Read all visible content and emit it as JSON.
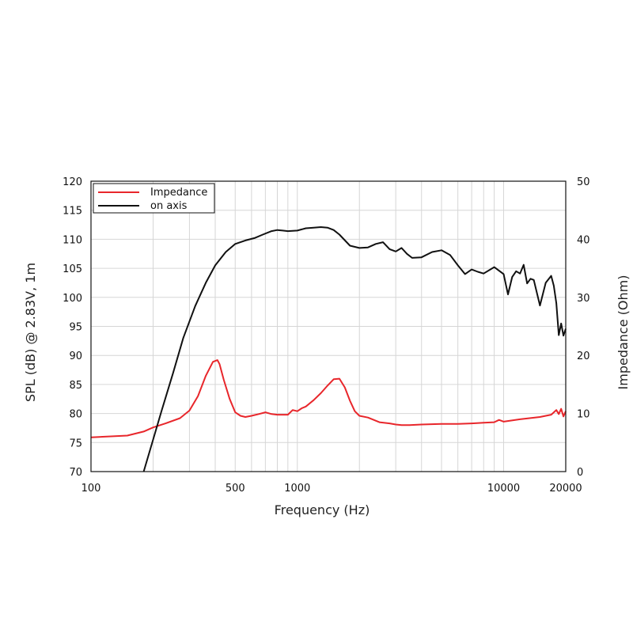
{
  "chart_data": {
    "type": "line",
    "xlabel": "Frequency (Hz)",
    "ylabel": "SPL (dB) @ 2.83V, 1m",
    "y2label": "Impedance (Ohm)",
    "xscale": "log",
    "xlim": [
      100,
      20000
    ],
    "ylim": [
      70,
      120
    ],
    "y2lim": [
      0,
      50
    ],
    "grid": true,
    "legend_position": "top-left",
    "x_ticks": [
      "100",
      "500",
      "1000",
      "10000",
      "20000"
    ],
    "y_ticks": [
      "70",
      "75",
      "80",
      "85",
      "90",
      "95",
      "100",
      "105",
      "110",
      "115",
      "120"
    ],
    "y2_ticks": [
      "0",
      "10",
      "20",
      "30",
      "40",
      "50"
    ],
    "series": [
      {
        "name": "Impedance",
        "axis": "right",
        "color": "#e8262b",
        "x": [
          100,
          150,
          180,
          200,
          230,
          270,
          300,
          330,
          360,
          390,
          410,
          420,
          440,
          470,
          500,
          530,
          560,
          600,
          650,
          700,
          750,
          800,
          900,
          950,
          1000,
          1050,
          1100,
          1200,
          1300,
          1400,
          1500,
          1600,
          1700,
          1800,
          1900,
          2000,
          2200,
          2500,
          2800,
          3000,
          3200,
          3500,
          4000,
          5000,
          6000,
          7000,
          8000,
          9000,
          9500,
          10000,
          12000,
          15000,
          17000,
          18000,
          18500,
          19000,
          19500,
          20000
        ],
        "values": [
          5.9,
          6.2,
          6.9,
          7.6,
          8.3,
          9.2,
          10.5,
          13,
          16.5,
          18.9,
          19.2,
          18.5,
          15.8,
          12.5,
          10.2,
          9.6,
          9.4,
          9.6,
          9.9,
          10.2,
          9.9,
          9.8,
          9.8,
          10.6,
          10.4,
          10.9,
          11.2,
          12.3,
          13.5,
          14.8,
          15.9,
          16.0,
          14.5,
          12.2,
          10.4,
          9.6,
          9.3,
          8.5,
          8.3,
          8.1,
          8.0,
          8.0,
          8.1,
          8.2,
          8.2,
          8.3,
          8.4,
          8.5,
          8.9,
          8.6,
          9.0,
          9.4,
          9.8,
          10.6,
          9.9,
          10.8,
          9.5,
          10.4
        ]
      },
      {
        "name": "on axis",
        "axis": "left",
        "color": "#111111",
        "x": [
          180,
          200,
          220,
          250,
          280,
          320,
          360,
          400,
          450,
          500,
          560,
          620,
          680,
          750,
          800,
          850,
          900,
          1000,
          1100,
          1200,
          1300,
          1400,
          1500,
          1600,
          1800,
          2000,
          2200,
          2400,
          2600,
          2800,
          3000,
          3200,
          3400,
          3600,
          4000,
          4500,
          5000,
          5500,
          6000,
          6500,
          7000,
          7500,
          8000,
          9000,
          10000,
          10500,
          11000,
          11500,
          12000,
          12500,
          13000,
          13500,
          14000,
          15000,
          16000,
          17000,
          17500,
          18000,
          18500,
          19000,
          19500,
          20000
        ],
        "values": [
          70,
          75.5,
          80.5,
          87,
          93,
          98.5,
          102.5,
          105.5,
          107.8,
          109.2,
          109.8,
          110.2,
          110.8,
          111.4,
          111.6,
          111.5,
          111.4,
          111.5,
          111.9,
          112,
          112.1,
          112,
          111.6,
          110.8,
          108.9,
          108.5,
          108.6,
          109.2,
          109.5,
          108.3,
          107.9,
          108.5,
          107.5,
          106.8,
          106.9,
          107.8,
          108.1,
          107.3,
          105.5,
          104,
          104.8,
          104.4,
          104.1,
          105.2,
          104,
          100.5,
          103.5,
          104.5,
          104.1,
          105.6,
          102.4,
          103.2,
          103,
          98.6,
          102.5,
          103.7,
          102,
          99,
          93.5,
          95.5,
          93.4,
          94.6
        ]
      }
    ]
  }
}
